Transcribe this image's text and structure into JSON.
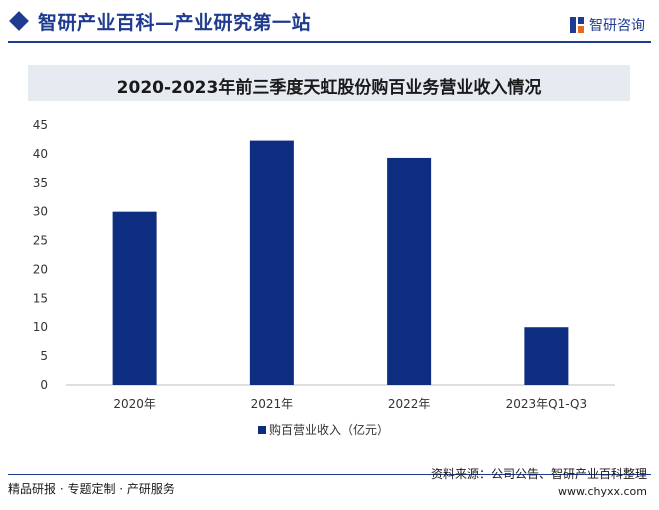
{
  "header": {
    "site_title": "智研产业百科—产业研究第一站",
    "brand": "智研咨询"
  },
  "chart_data": {
    "type": "bar",
    "title": "2020-2023年前三季度天虹股份购百业务营业收入情况",
    "categories": [
      "2020年",
      "2021年",
      "2022年",
      "2023年Q1-Q3"
    ],
    "series": [
      {
        "name": "购百营业收入（亿元）",
        "values": [
          30.0,
          42.3,
          39.3,
          10.0
        ]
      }
    ],
    "ylim": [
      0,
      45
    ],
    "yticks": [
      0,
      5,
      10,
      15,
      20,
      25,
      30,
      35,
      40,
      45
    ],
    "grid": false,
    "legend": "bottom-center",
    "bar_color": "#0d2d80"
  },
  "footer": {
    "left_text": "精品研报 · 专题定制 · 产研服务",
    "source": "资料来源：公司公告、智研产业百科整理",
    "url": "www.chyxx.com"
  }
}
